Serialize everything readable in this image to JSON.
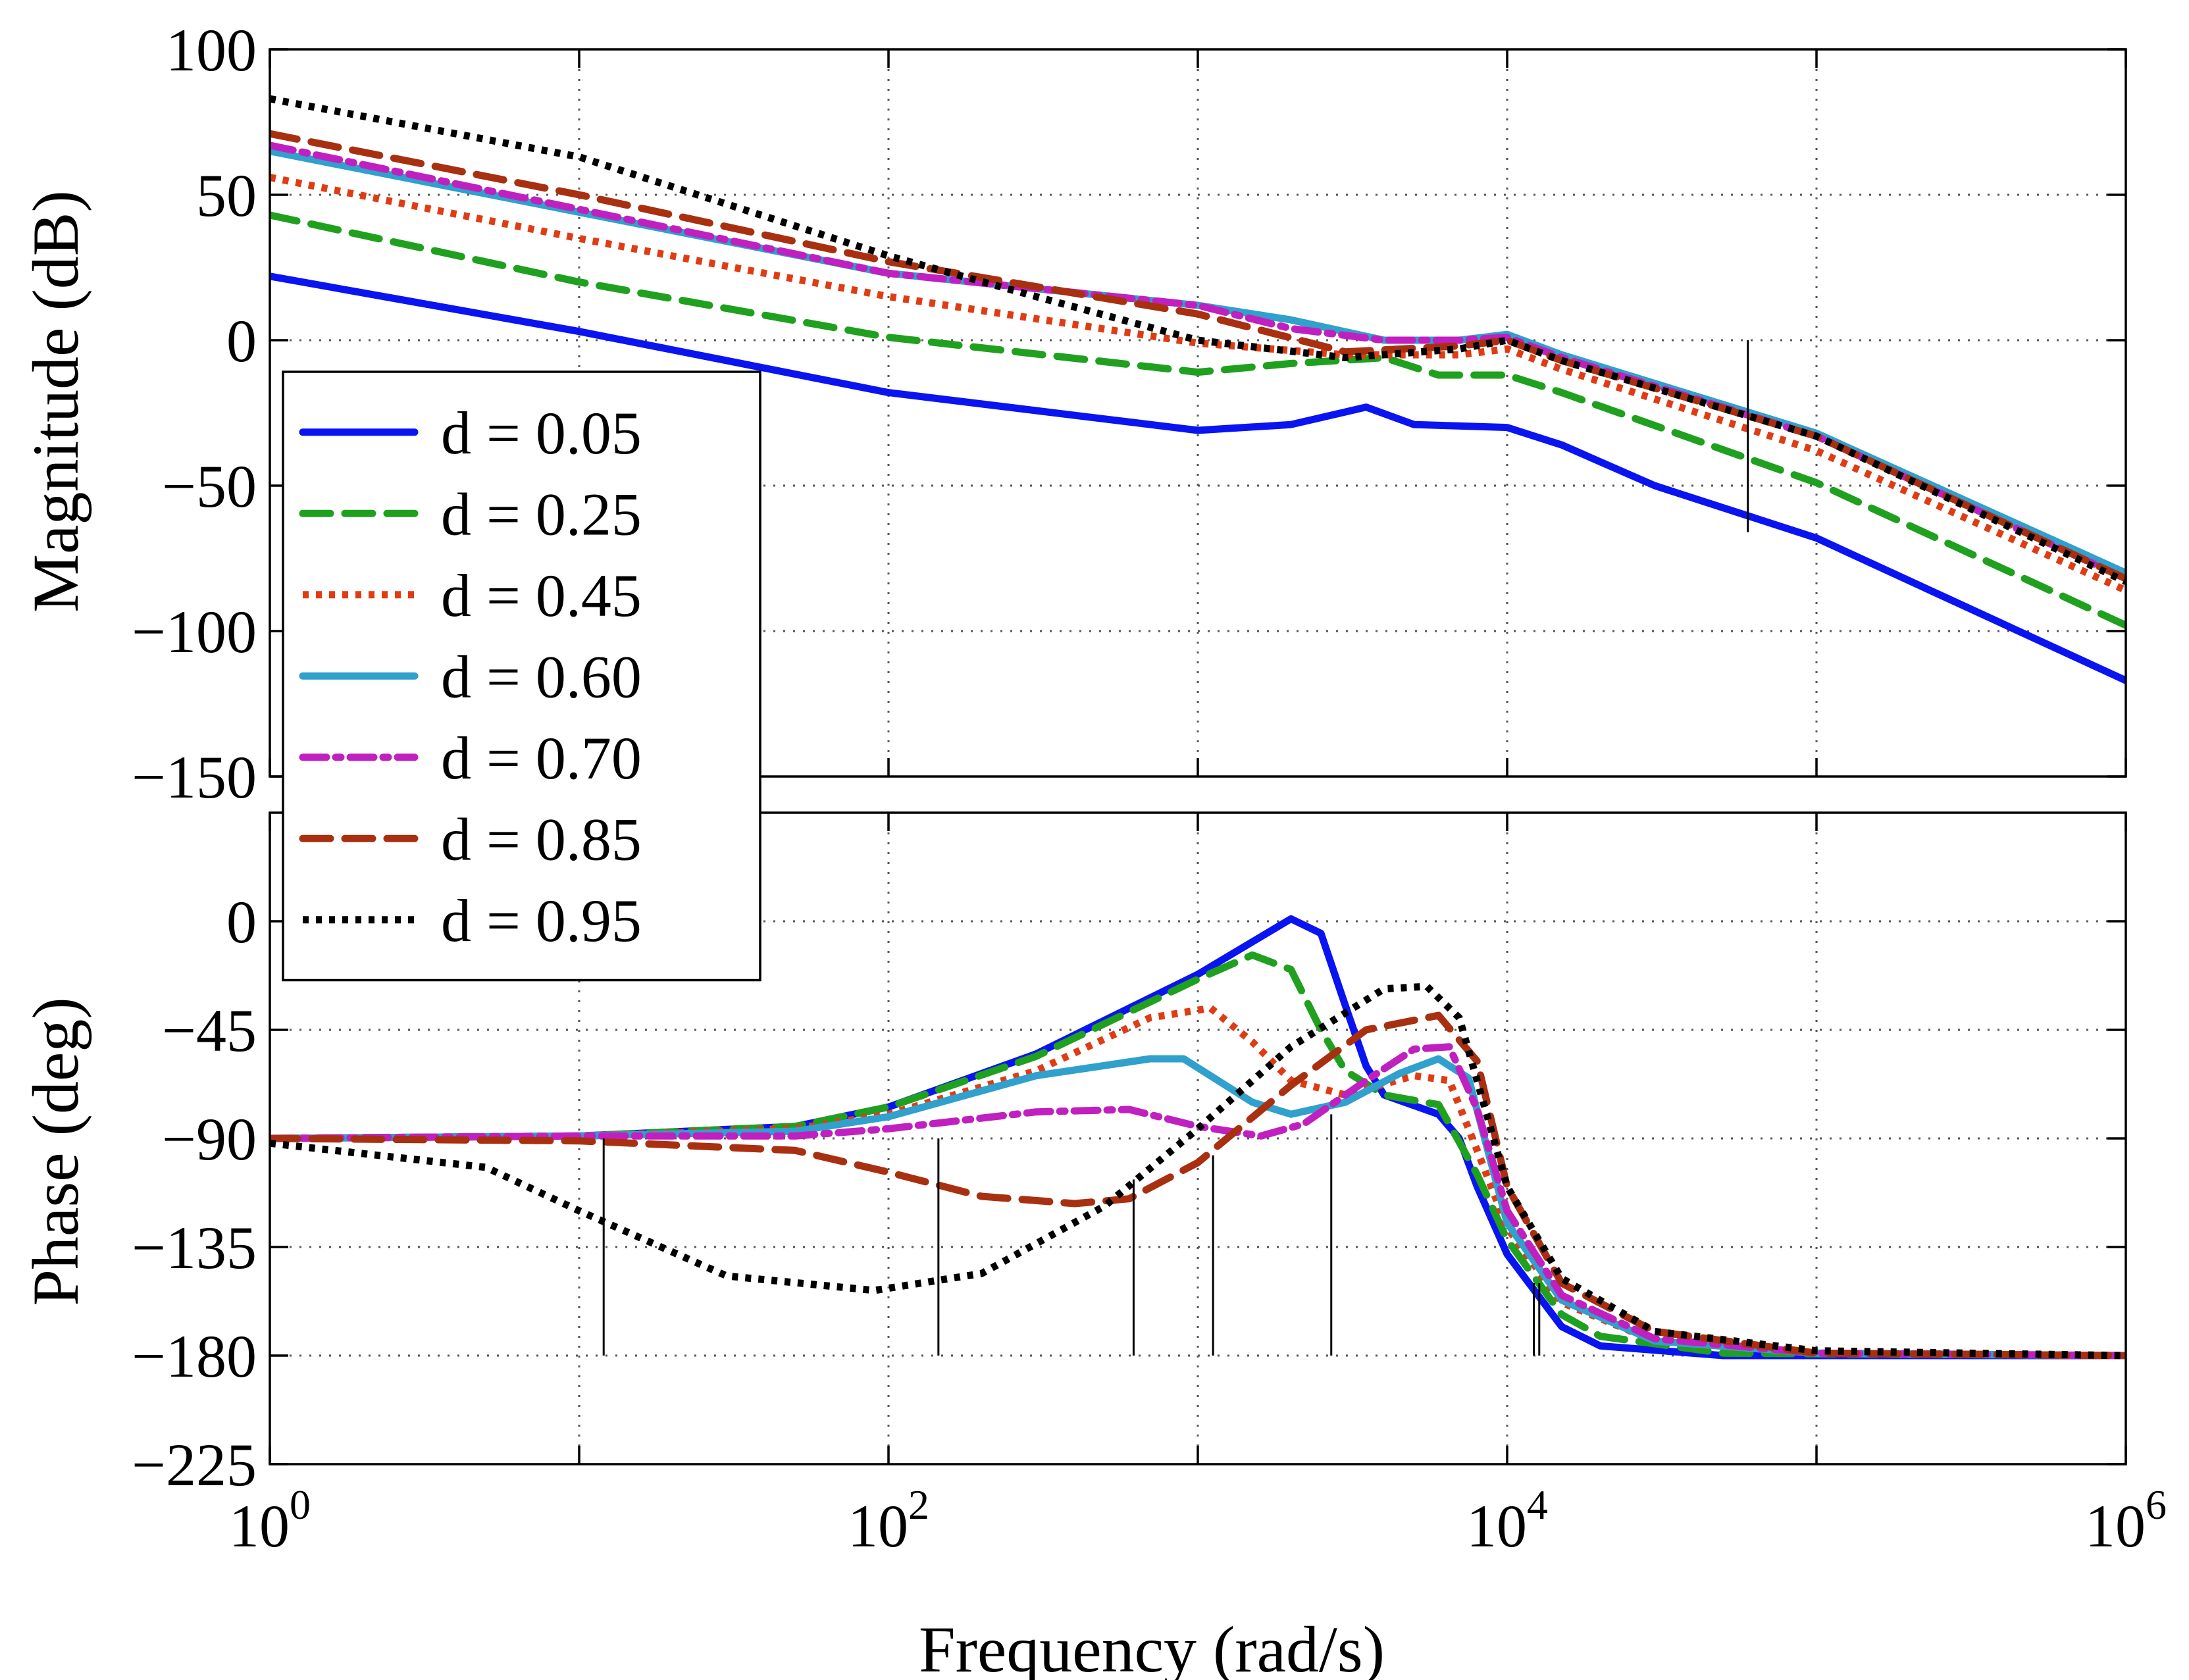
{
  "chart_data": [
    {
      "type": "line",
      "panel": "magnitude",
      "title": "",
      "xlabel": "",
      "ylabel": "Magnitude (dB)",
      "xscale": "log",
      "xlim": [
        1,
        1000000
      ],
      "ylim": [
        -150,
        100
      ],
      "yticks": [
        100,
        50,
        0,
        -50,
        -100,
        -150
      ],
      "ytick_labels": [
        "100",
        "50",
        "0",
        "−50",
        "−100",
        "−150"
      ],
      "grid": true,
      "series": [
        {
          "name": "d = 0.05",
          "color": "#0a14f0",
          "dash": "solid",
          "points": [
            [
              1,
              22
            ],
            [
              10,
              3
            ],
            [
              100,
              -18
            ],
            [
              1000,
              -31
            ],
            [
              2000,
              -29
            ],
            [
              3500,
              -23
            ],
            [
              5000,
              -29
            ],
            [
              10000,
              -30
            ],
            [
              15000,
              -36
            ],
            [
              30000,
              -50
            ],
            [
              100000,
              -68
            ],
            [
              1000000,
              -117
            ]
          ]
        },
        {
          "name": "d = 0.25",
          "color": "#1fa01f",
          "dash": "dashed",
          "points": [
            [
              1,
              43
            ],
            [
              10,
              20
            ],
            [
              100,
              1
            ],
            [
              1000,
              -11
            ],
            [
              2000,
              -8
            ],
            [
              4000,
              -6
            ],
            [
              6000,
              -12
            ],
            [
              10000,
              -12
            ],
            [
              15000,
              -18
            ],
            [
              100000,
              -49
            ],
            [
              1000000,
              -98
            ]
          ]
        },
        {
          "name": "d = 0.45",
          "color": "#e03c14",
          "dash": "dotted",
          "points": [
            [
              1,
              56
            ],
            [
              10,
              35
            ],
            [
              100,
              15
            ],
            [
              1000,
              -1
            ],
            [
              3000,
              -5
            ],
            [
              7000,
              -5
            ],
            [
              10000,
              -3
            ],
            [
              15000,
              -10
            ],
            [
              100000,
              -38
            ],
            [
              1000000,
              -86
            ]
          ]
        },
        {
          "name": "d = 0.60",
          "color": "#30a0cc",
          "dash": "solid",
          "points": [
            [
              1,
              65
            ],
            [
              10,
              44
            ],
            [
              100,
              23
            ],
            [
              1000,
              12
            ],
            [
              2000,
              7
            ],
            [
              4000,
              0
            ],
            [
              7000,
              0
            ],
            [
              10000,
              2
            ],
            [
              15000,
              -5
            ],
            [
              100000,
              -32
            ],
            [
              1000000,
              -80
            ]
          ]
        },
        {
          "name": "d = 0.70",
          "color": "#c020c0",
          "dash": "dashdot",
          "points": [
            [
              1,
              67
            ],
            [
              10,
              45
            ],
            [
              100,
              23
            ],
            [
              1000,
              12
            ],
            [
              2000,
              4
            ],
            [
              4000,
              0
            ],
            [
              7000,
              0
            ],
            [
              10000,
              1
            ],
            [
              15000,
              -6
            ],
            [
              100000,
              -33
            ],
            [
              1000000,
              -82
            ]
          ]
        },
        {
          "name": "d = 0.85",
          "color": "#a83010",
          "dash": "dashed",
          "points": [
            [
              1,
              71
            ],
            [
              10,
              50
            ],
            [
              100,
              27
            ],
            [
              1000,
              9
            ],
            [
              3000,
              -4
            ],
            [
              7000,
              -2
            ],
            [
              10000,
              0
            ],
            [
              15000,
              -7
            ],
            [
              100000,
              -33
            ],
            [
              1000000,
              -82
            ]
          ]
        },
        {
          "name": "d = 0.95",
          "color": "#000000",
          "dash": "dotted",
          "points": [
            [
              1,
              83
            ],
            [
              10,
              63
            ],
            [
              100,
              29
            ],
            [
              300,
              15
            ],
            [
              1000,
              0
            ],
            [
              3000,
              -6
            ],
            [
              7000,
              -3
            ],
            [
              10000,
              0
            ],
            [
              15000,
              -7
            ],
            [
              100000,
              -33
            ],
            [
              1000000,
              -83
            ]
          ]
        }
      ],
      "markers": [
        {
          "x": 60000,
          "y0": -66,
          "y1": 0
        }
      ]
    },
    {
      "type": "line",
      "panel": "phase",
      "title": "",
      "xlabel": "Frequency (rad/s)",
      "ylabel": "Phase (deg)",
      "xscale": "log",
      "xlim": [
        1,
        1000000
      ],
      "ylim": [
        -225,
        45
      ],
      "yticks": [
        0,
        -45,
        -90,
        -135,
        -180,
        -225
      ],
      "ytick_labels": [
        "0",
        "−45",
        "−90",
        "−135",
        "−180",
        "−225"
      ],
      "xticks": [
        1,
        100,
        10000,
        1000000
      ],
      "xtick_labels": [
        {
          "base": "10",
          "exp": "0"
        },
        {
          "base": "10",
          "exp": "2"
        },
        {
          "base": "10",
          "exp": "4"
        },
        {
          "base": "10",
          "exp": "6"
        }
      ],
      "grid": true,
      "series": [
        {
          "name": "d = 0.05",
          "color": "#0a14f0",
          "dash": "solid",
          "points": [
            [
              1,
              -90
            ],
            [
              10,
              -89
            ],
            [
              50,
              -85
            ],
            [
              100,
              -77
            ],
            [
              300,
              -55
            ],
            [
              1000,
              -22
            ],
            [
              2000,
              1
            ],
            [
              2500,
              -5
            ],
            [
              3000,
              -35
            ],
            [
              3500,
              -60
            ],
            [
              4000,
              -72
            ],
            [
              6000,
              -80
            ],
            [
              7000,
              -90
            ],
            [
              8000,
              -110
            ],
            [
              10000,
              -138
            ],
            [
              15000,
              -168
            ],
            [
              20000,
              -176
            ],
            [
              50000,
              -180
            ],
            [
              1000000,
              -180
            ]
          ]
        },
        {
          "name": "d = 0.25",
          "color": "#1fa01f",
          "dash": "dashed",
          "points": [
            [
              1,
              -90
            ],
            [
              10,
              -89
            ],
            [
              50,
              -85
            ],
            [
              100,
              -77
            ],
            [
              300,
              -56
            ],
            [
              1000,
              -24
            ],
            [
              1500,
              -14
            ],
            [
              2000,
              -20
            ],
            [
              2500,
              -45
            ],
            [
              3000,
              -62
            ],
            [
              4000,
              -72
            ],
            [
              6000,
              -76
            ],
            [
              8000,
              -105
            ],
            [
              10000,
              -132
            ],
            [
              15000,
              -163
            ],
            [
              20000,
              -172
            ],
            [
              50000,
              -179
            ],
            [
              1000000,
              -180
            ]
          ]
        },
        {
          "name": "d = 0.45",
          "color": "#e03c14",
          "dash": "dotted",
          "points": [
            [
              1,
              -90
            ],
            [
              10,
              -89
            ],
            [
              50,
              -86
            ],
            [
              100,
              -80
            ],
            [
              300,
              -62
            ],
            [
              700,
              -40
            ],
            [
              1100,
              -36
            ],
            [
              1500,
              -50
            ],
            [
              2000,
              -66
            ],
            [
              3000,
              -72
            ],
            [
              5000,
              -64
            ],
            [
              6500,
              -66
            ],
            [
              8000,
              -95
            ],
            [
              10000,
              -127
            ],
            [
              15000,
              -158
            ],
            [
              30000,
              -174
            ],
            [
              100000,
              -179
            ],
            [
              1000000,
              -180
            ]
          ]
        },
        {
          "name": "d = 0.60",
          "color": "#30a0cc",
          "dash": "solid",
          "points": [
            [
              1,
              -90
            ],
            [
              10,
              -89
            ],
            [
              50,
              -87
            ],
            [
              100,
              -81
            ],
            [
              300,
              -64
            ],
            [
              700,
              -57
            ],
            [
              900,
              -57
            ],
            [
              1500,
              -75
            ],
            [
              2000,
              -80
            ],
            [
              3000,
              -75
            ],
            [
              4500,
              -63
            ],
            [
              6000,
              -57
            ],
            [
              7500,
              -65
            ],
            [
              10000,
              -125
            ],
            [
              15000,
              -157
            ],
            [
              30000,
              -174
            ],
            [
              100000,
              -179
            ],
            [
              1000000,
              -180
            ]
          ]
        },
        {
          "name": "d = 0.70",
          "color": "#c020c0",
          "dash": "dashdot",
          "points": [
            [
              1,
              -90
            ],
            [
              10,
              -89
            ],
            [
              50,
              -89
            ],
            [
              100,
              -86
            ],
            [
              300,
              -79
            ],
            [
              600,
              -78
            ],
            [
              1000,
              -85
            ],
            [
              1600,
              -89
            ],
            [
              2200,
              -84
            ],
            [
              3500,
              -66
            ],
            [
              5000,
              -53
            ],
            [
              6500,
              -52
            ],
            [
              8000,
              -78
            ],
            [
              10000,
              -120
            ],
            [
              15000,
              -155
            ],
            [
              30000,
              -173
            ],
            [
              100000,
              -179
            ],
            [
              1000000,
              -180
            ]
          ]
        },
        {
          "name": "d = 0.85",
          "color": "#a83010",
          "dash": "dashed",
          "points": [
            [
              1,
              -90
            ],
            [
              10,
              -91
            ],
            [
              50,
              -95
            ],
            [
              100,
              -104
            ],
            [
              200,
              -114
            ],
            [
              400,
              -117
            ],
            [
              600,
              -115
            ],
            [
              1000,
              -100
            ],
            [
              2000,
              -68
            ],
            [
              3500,
              -45
            ],
            [
              6000,
              -39
            ],
            [
              8000,
              -58
            ],
            [
              10000,
              -110
            ],
            [
              15000,
              -150
            ],
            [
              30000,
              -170
            ],
            [
              100000,
              -179
            ],
            [
              1000000,
              -180
            ]
          ]
        },
        {
          "name": "d = 0.95",
          "color": "#000000",
          "dash": "dotted",
          "points": [
            [
              1,
              -92
            ],
            [
              5,
              -102
            ],
            [
              10,
              -120
            ],
            [
              30,
              -147
            ],
            [
              90,
              -153
            ],
            [
              200,
              -146
            ],
            [
              500,
              -118
            ],
            [
              1000,
              -86
            ],
            [
              2000,
              -52
            ],
            [
              4000,
              -28
            ],
            [
              5500,
              -27
            ],
            [
              7000,
              -40
            ],
            [
              8500,
              -78
            ],
            [
              10000,
              -110
            ],
            [
              15000,
              -148
            ],
            [
              30000,
              -170
            ],
            [
              100000,
              -178
            ],
            [
              1000000,
              -180
            ]
          ]
        }
      ],
      "markers": [
        {
          "x": 12,
          "y0": -180,
          "y1": -90
        },
        {
          "x": 145,
          "y0": -180,
          "y1": -90
        },
        {
          "x": 620,
          "y0": -180,
          "y1": -107
        },
        {
          "x": 1120,
          "y0": -180,
          "y1": -97
        },
        {
          "x": 2700,
          "y0": -180,
          "y1": -80
        },
        {
          "x": 12200,
          "y0": -180,
          "y1": -150
        },
        {
          "x": 12700,
          "y0": -180,
          "y1": -150
        }
      ]
    }
  ],
  "legend": {
    "position": "upper-left",
    "entries": [
      "d = 0.05",
      "d = 0.25",
      "d = 0.45",
      "d = 0.60",
      "d = 0.70",
      "d = 0.85",
      "d = 0.95"
    ]
  }
}
